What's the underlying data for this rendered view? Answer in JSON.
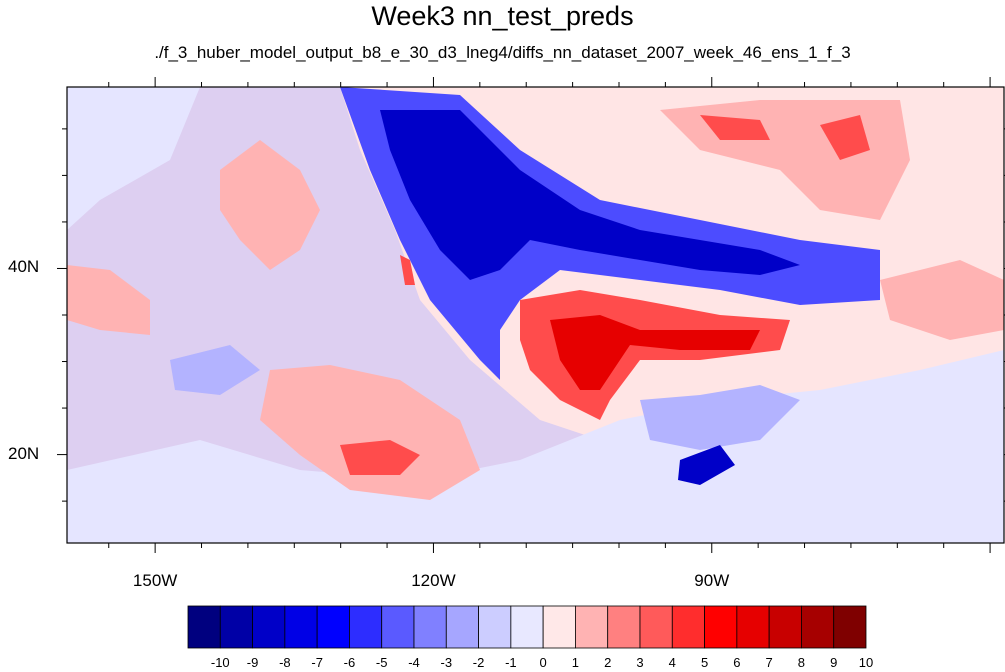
{
  "title": "Week3 nn_test_preds",
  "subtitle": "./f_3_huber_model_output_b8_e_30_d3_lneg4/diffs_nn_dataset_2007_week_46_ens_1_f_3",
  "map": {
    "lat_labels": [
      {
        "text": "40N",
        "lat": 40
      },
      {
        "text": "20N",
        "lat": 20
      }
    ],
    "lon_labels": [
      {
        "text": "150W",
        "lon": -150
      },
      {
        "text": "120W",
        "lon": -120
      },
      {
        "text": "90W",
        "lon": -90
      }
    ],
    "lat_range": [
      10.5,
      59.5
    ],
    "lon_range": [
      -159.5,
      -58.5
    ],
    "ocean_color": "#ffe5e5",
    "colors": {
      "strong_negative": "#0000c8",
      "negative": "#4c4cff",
      "weak_negative": "#b3b3ff",
      "near_zero_negative": "#e5e5ff",
      "near_zero_positive": "#ffe5e5",
      "weak_positive": "#ffb3b3",
      "positive": "#ff4c4c",
      "strong_positive": "#e60000"
    }
  },
  "colorbar": {
    "labels": [
      "-10",
      "-9",
      "-8",
      "-7",
      "-6",
      "-5",
      "-4",
      "-3",
      "-2",
      "-1",
      "0",
      "1",
      "2",
      "3",
      "4",
      "5",
      "6",
      "7",
      "8",
      "9",
      "10"
    ],
    "colors": [
      "#00007f",
      "#0000a6",
      "#0000c8",
      "#0000e6",
      "#0000ff",
      "#2d2dff",
      "#5a5aff",
      "#8080ff",
      "#a6a6ff",
      "#cccdff",
      "#e8e8ff",
      "#ffe8e8",
      "#ffb3b3",
      "#ff8080",
      "#ff5a5a",
      "#ff2d2d",
      "#ff0000",
      "#e60000",
      "#c80000",
      "#a60000",
      "#7f0000"
    ]
  }
}
